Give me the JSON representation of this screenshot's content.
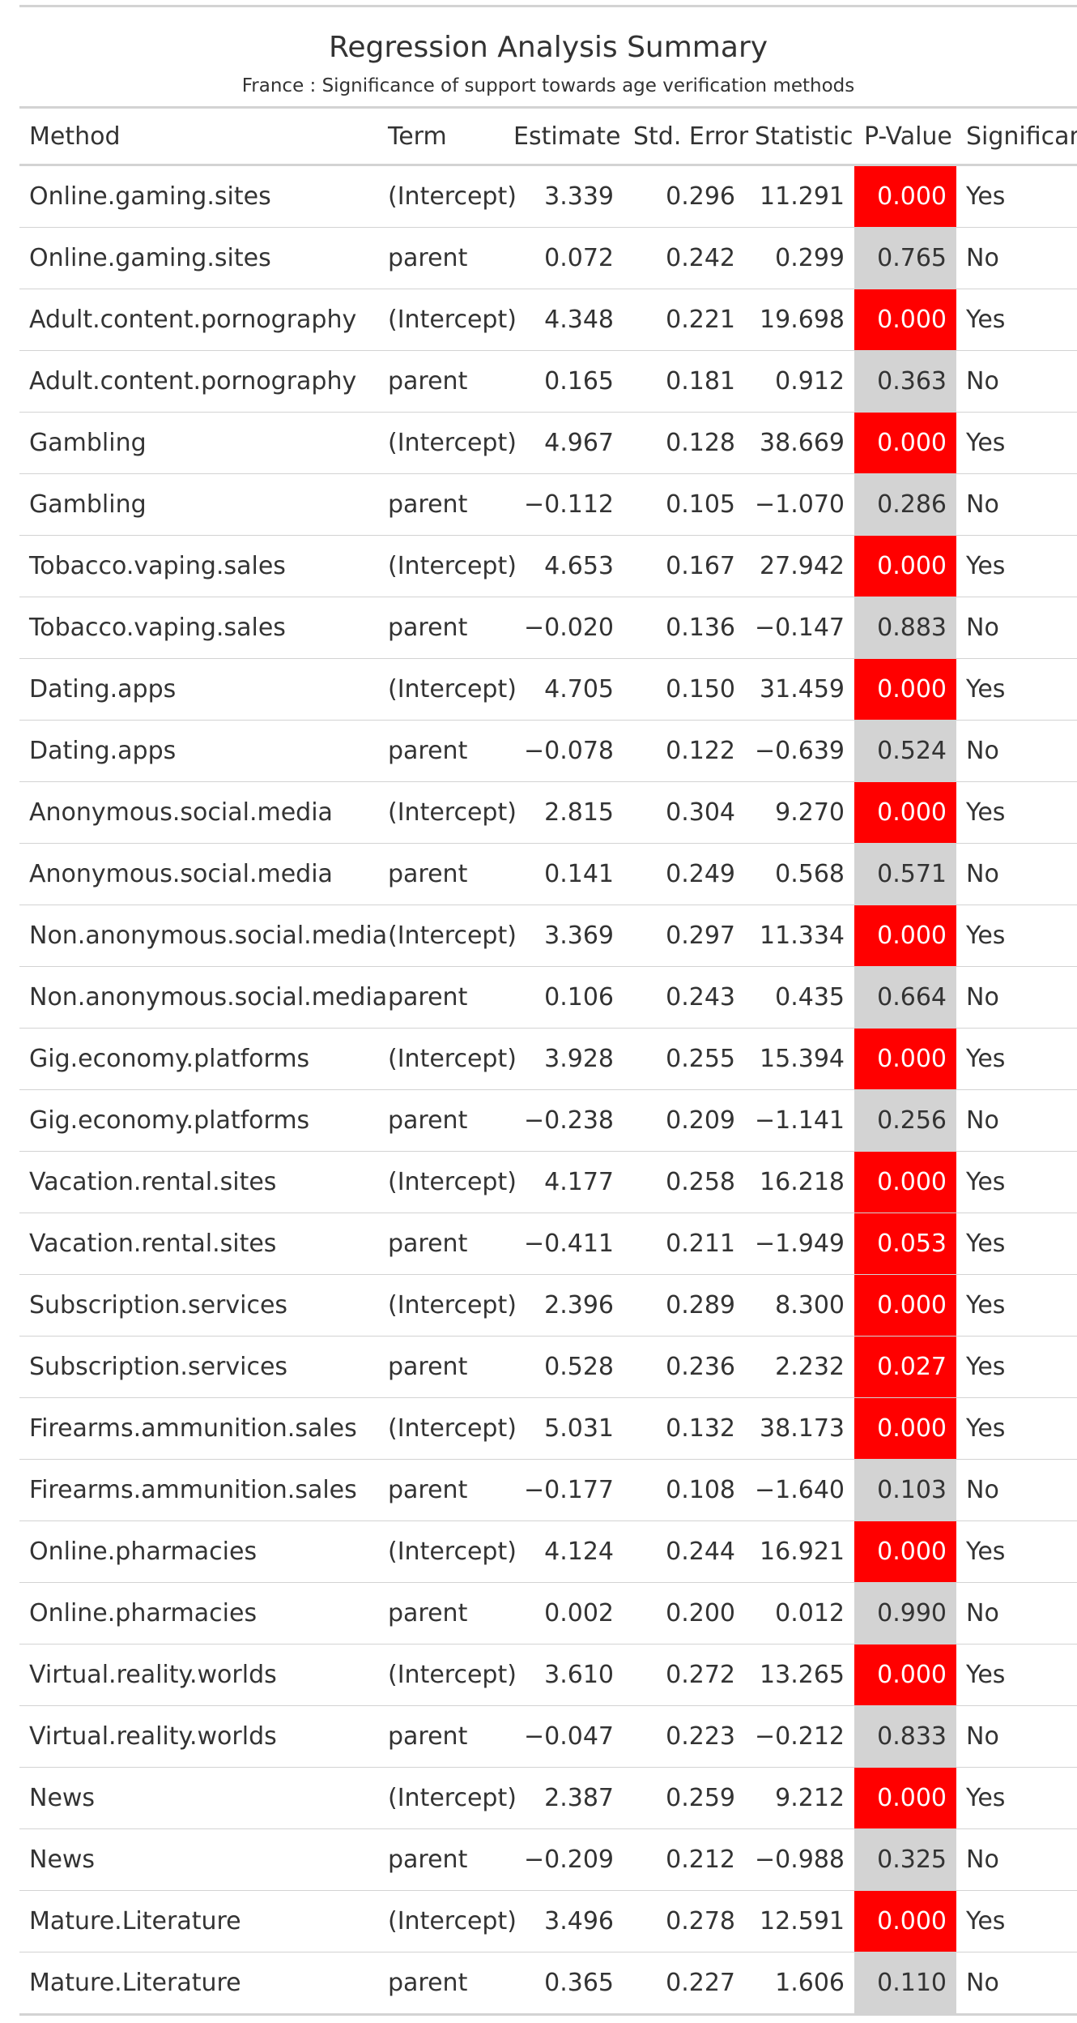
{
  "title": "Regression Analysis Summary",
  "subtitle": "France : Significance of support towards age verification methods",
  "colors": {
    "significant_fill": "#FF0000",
    "not_significant_fill": "#D3D3D3"
  },
  "columns": [
    "Method",
    "Term",
    "Estimate",
    "Std. Error",
    "Statistic",
    "P-Value",
    "Significant"
  ],
  "rows": [
    {
      "method": "Online.gaming.sites",
      "term": "(Intercept)",
      "estimate": "3.339",
      "std_error": "0.296",
      "statistic": "11.291",
      "p_value": "0.000",
      "significant": "Yes"
    },
    {
      "method": "Online.gaming.sites",
      "term": "parent",
      "estimate": "0.072",
      "std_error": "0.242",
      "statistic": "0.299",
      "p_value": "0.765",
      "significant": "No"
    },
    {
      "method": "Adult.content.pornography",
      "term": "(Intercept)",
      "estimate": "4.348",
      "std_error": "0.221",
      "statistic": "19.698",
      "p_value": "0.000",
      "significant": "Yes"
    },
    {
      "method": "Adult.content.pornography",
      "term": "parent",
      "estimate": "0.165",
      "std_error": "0.181",
      "statistic": "0.912",
      "p_value": "0.363",
      "significant": "No"
    },
    {
      "method": "Gambling",
      "term": "(Intercept)",
      "estimate": "4.967",
      "std_error": "0.128",
      "statistic": "38.669",
      "p_value": "0.000",
      "significant": "Yes"
    },
    {
      "method": "Gambling",
      "term": "parent",
      "estimate": "−0.112",
      "std_error": "0.105",
      "statistic": "−1.070",
      "p_value": "0.286",
      "significant": "No"
    },
    {
      "method": "Tobacco.vaping.sales",
      "term": "(Intercept)",
      "estimate": "4.653",
      "std_error": "0.167",
      "statistic": "27.942",
      "p_value": "0.000",
      "significant": "Yes"
    },
    {
      "method": "Tobacco.vaping.sales",
      "term": "parent",
      "estimate": "−0.020",
      "std_error": "0.136",
      "statistic": "−0.147",
      "p_value": "0.883",
      "significant": "No"
    },
    {
      "method": "Dating.apps",
      "term": "(Intercept)",
      "estimate": "4.705",
      "std_error": "0.150",
      "statistic": "31.459",
      "p_value": "0.000",
      "significant": "Yes"
    },
    {
      "method": "Dating.apps",
      "term": "parent",
      "estimate": "−0.078",
      "std_error": "0.122",
      "statistic": "−0.639",
      "p_value": "0.524",
      "significant": "No"
    },
    {
      "method": "Anonymous.social.media",
      "term": "(Intercept)",
      "estimate": "2.815",
      "std_error": "0.304",
      "statistic": "9.270",
      "p_value": "0.000",
      "significant": "Yes"
    },
    {
      "method": "Anonymous.social.media",
      "term": "parent",
      "estimate": "0.141",
      "std_error": "0.249",
      "statistic": "0.568",
      "p_value": "0.571",
      "significant": "No"
    },
    {
      "method": "Non.anonymous.social.media",
      "term": "(Intercept)",
      "estimate": "3.369",
      "std_error": "0.297",
      "statistic": "11.334",
      "p_value": "0.000",
      "significant": "Yes"
    },
    {
      "method": "Non.anonymous.social.media",
      "term": "parent",
      "estimate": "0.106",
      "std_error": "0.243",
      "statistic": "0.435",
      "p_value": "0.664",
      "significant": "No"
    },
    {
      "method": "Gig.economy.platforms",
      "term": "(Intercept)",
      "estimate": "3.928",
      "std_error": "0.255",
      "statistic": "15.394",
      "p_value": "0.000",
      "significant": "Yes"
    },
    {
      "method": "Gig.economy.platforms",
      "term": "parent",
      "estimate": "−0.238",
      "std_error": "0.209",
      "statistic": "−1.141",
      "p_value": "0.256",
      "significant": "No"
    },
    {
      "method": "Vacation.rental.sites",
      "term": "(Intercept)",
      "estimate": "4.177",
      "std_error": "0.258",
      "statistic": "16.218",
      "p_value": "0.000",
      "significant": "Yes"
    },
    {
      "method": "Vacation.rental.sites",
      "term": "parent",
      "estimate": "−0.411",
      "std_error": "0.211",
      "statistic": "−1.949",
      "p_value": "0.053",
      "significant": "Yes"
    },
    {
      "method": "Subscription.services",
      "term": "(Intercept)",
      "estimate": "2.396",
      "std_error": "0.289",
      "statistic": "8.300",
      "p_value": "0.000",
      "significant": "Yes"
    },
    {
      "method": "Subscription.services",
      "term": "parent",
      "estimate": "0.528",
      "std_error": "0.236",
      "statistic": "2.232",
      "p_value": "0.027",
      "significant": "Yes"
    },
    {
      "method": "Firearms.ammunition.sales",
      "term": "(Intercept)",
      "estimate": "5.031",
      "std_error": "0.132",
      "statistic": "38.173",
      "p_value": "0.000",
      "significant": "Yes"
    },
    {
      "method": "Firearms.ammunition.sales",
      "term": "parent",
      "estimate": "−0.177",
      "std_error": "0.108",
      "statistic": "−1.640",
      "p_value": "0.103",
      "significant": "No"
    },
    {
      "method": "Online.pharmacies",
      "term": "(Intercept)",
      "estimate": "4.124",
      "std_error": "0.244",
      "statistic": "16.921",
      "p_value": "0.000",
      "significant": "Yes"
    },
    {
      "method": "Online.pharmacies",
      "term": "parent",
      "estimate": "0.002",
      "std_error": "0.200",
      "statistic": "0.012",
      "p_value": "0.990",
      "significant": "No"
    },
    {
      "method": "Virtual.reality.worlds",
      "term": "(Intercept)",
      "estimate": "3.610",
      "std_error": "0.272",
      "statistic": "13.265",
      "p_value": "0.000",
      "significant": "Yes"
    },
    {
      "method": "Virtual.reality.worlds",
      "term": "parent",
      "estimate": "−0.047",
      "std_error": "0.223",
      "statistic": "−0.212",
      "p_value": "0.833",
      "significant": "No"
    },
    {
      "method": "News",
      "term": "(Intercept)",
      "estimate": "2.387",
      "std_error": "0.259",
      "statistic": "9.212",
      "p_value": "0.000",
      "significant": "Yes"
    },
    {
      "method": "News",
      "term": "parent",
      "estimate": "−0.209",
      "std_error": "0.212",
      "statistic": "−0.988",
      "p_value": "0.325",
      "significant": "No"
    },
    {
      "method": "Mature.Literature",
      "term": "(Intercept)",
      "estimate": "3.496",
      "std_error": "0.278",
      "statistic": "12.591",
      "p_value": "0.000",
      "significant": "Yes"
    },
    {
      "method": "Mature.Literature",
      "term": "parent",
      "estimate": "0.365",
      "std_error": "0.227",
      "statistic": "1.606",
      "p_value": "0.110",
      "significant": "No"
    }
  ]
}
